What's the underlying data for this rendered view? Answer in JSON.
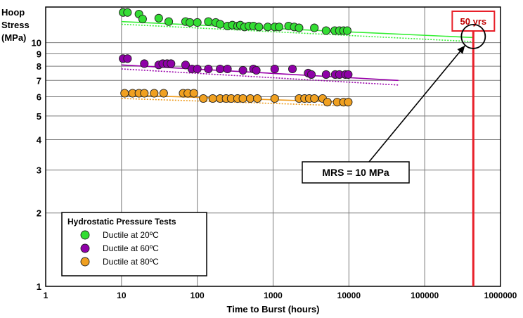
{
  "chart_data": {
    "type": "scatter",
    "title": "",
    "ylabel_lines": [
      "Hoop",
      "Stress",
      "(MPa)"
    ],
    "xlabel": "Time to Burst (hours)",
    "x_scale": "log",
    "y_scale": "log",
    "xlim": [
      1,
      1000000
    ],
    "ylim": [
      1,
      14
    ],
    "x_ticks": [
      {
        "value": 1,
        "label": "1"
      },
      {
        "value": 10,
        "label": "10"
      },
      {
        "value": 100,
        "label": "100"
      },
      {
        "value": 1000,
        "label": "1000"
      },
      {
        "value": 10000,
        "label": "10000"
      },
      {
        "value": 100000,
        "label": "100000"
      },
      {
        "value": 1000000,
        "label": "1000000"
      }
    ],
    "y_ticks": [
      {
        "value": 1,
        "label": "1"
      },
      {
        "value": 2,
        "label": "2"
      },
      {
        "value": 3,
        "label": "3"
      },
      {
        "value": 4,
        "label": "4"
      },
      {
        "value": 5,
        "label": "5"
      },
      {
        "value": 6,
        "label": "6"
      },
      {
        "value": 7,
        "label": "7"
      },
      {
        "value": 8,
        "label": "8"
      },
      {
        "value": 9,
        "label": "9"
      },
      {
        "value": 10,
        "label": "10"
      }
    ],
    "grid": true,
    "legend": {
      "title": "Hydrostatic Pressure Tests",
      "placement": "bottom-left"
    },
    "series": [
      {
        "name": "Ductile at 20ºC",
        "color": "#33dd33",
        "line_color": "#33ee33",
        "points": [
          [
            10.5,
            13.3
          ],
          [
            12,
            13.3
          ],
          [
            17,
            13.1
          ],
          [
            19,
            12.5
          ],
          [
            31,
            12.6
          ],
          [
            42,
            12.2
          ],
          [
            70,
            12.2
          ],
          [
            80,
            12.1
          ],
          [
            100,
            12.1
          ],
          [
            140,
            12.2
          ],
          [
            175,
            12.1
          ],
          [
            200,
            11.9
          ],
          [
            250,
            11.7
          ],
          [
            290,
            11.8
          ],
          [
            340,
            11.7
          ],
          [
            370,
            11.8
          ],
          [
            420,
            11.6
          ],
          [
            480,
            11.7
          ],
          [
            550,
            11.7
          ],
          [
            650,
            11.6
          ],
          [
            850,
            11.6
          ],
          [
            1050,
            11.6
          ],
          [
            1200,
            11.6
          ],
          [
            1600,
            11.7
          ],
          [
            1900,
            11.6
          ],
          [
            2200,
            11.5
          ],
          [
            3500,
            11.5
          ],
          [
            5000,
            11.2
          ],
          [
            6500,
            11.2
          ],
          [
            7500,
            11.2
          ],
          [
            8500,
            11.2
          ],
          [
            9500,
            11.2
          ]
        ],
        "trend": {
          "x": [
            10,
            430000
          ],
          "y": [
            12.2,
            10.5
          ]
        },
        "lower_bound": {
          "x": [
            10,
            430000
          ],
          "y": [
            11.9,
            10.1
          ]
        }
      },
      {
        "name": "Ductile at 60ºC",
        "color": "#8f00a8",
        "line_color": "#9900aa",
        "points": [
          [
            10.5,
            8.6
          ],
          [
            12,
            8.6
          ],
          [
            20,
            8.2
          ],
          [
            31,
            8.1
          ],
          [
            35,
            8.2
          ],
          [
            40,
            8.2
          ],
          [
            45,
            8.2
          ],
          [
            70,
            8.1
          ],
          [
            85,
            7.8
          ],
          [
            100,
            7.8
          ],
          [
            140,
            7.8
          ],
          [
            200,
            7.8
          ],
          [
            250,
            7.8
          ],
          [
            400,
            7.7
          ],
          [
            550,
            7.8
          ],
          [
            600,
            7.7
          ],
          [
            1050,
            7.8
          ],
          [
            1800,
            7.8
          ],
          [
            2900,
            7.5
          ],
          [
            3200,
            7.4
          ],
          [
            5000,
            7.4
          ],
          [
            6600,
            7.4
          ],
          [
            7500,
            7.4
          ],
          [
            9000,
            7.4
          ],
          [
            9800,
            7.4
          ]
        ],
        "trend": {
          "x": [
            10,
            45000
          ],
          "y": [
            8.1,
            7.0
          ]
        },
        "lower_bound": {
          "x": [
            10,
            45000
          ],
          "y": [
            7.8,
            6.7
          ]
        }
      },
      {
        "name": "Ductile at 80ºC",
        "color": "#f0a020",
        "line_color": "#ee9a1a",
        "points": [
          [
            11,
            6.2
          ],
          [
            14,
            6.2
          ],
          [
            17,
            6.2
          ],
          [
            20,
            6.2
          ],
          [
            27,
            6.2
          ],
          [
            36,
            6.2
          ],
          [
            65,
            6.2
          ],
          [
            75,
            6.2
          ],
          [
            90,
            6.2
          ],
          [
            120,
            5.9
          ],
          [
            160,
            5.9
          ],
          [
            200,
            5.9
          ],
          [
            240,
            5.9
          ],
          [
            280,
            5.9
          ],
          [
            340,
            5.9
          ],
          [
            400,
            5.9
          ],
          [
            500,
            5.9
          ],
          [
            620,
            5.9
          ],
          [
            1050,
            5.9
          ],
          [
            2200,
            5.9
          ],
          [
            2600,
            5.9
          ],
          [
            3000,
            5.9
          ],
          [
            3500,
            5.9
          ],
          [
            4500,
            5.9
          ],
          [
            5200,
            5.7
          ],
          [
            7000,
            5.7
          ],
          [
            8500,
            5.7
          ],
          [
            9800,
            5.7
          ]
        ],
        "trend": {
          "x": [
            10,
            10000
          ],
          "y": [
            6.1,
            5.7
          ]
        },
        "lower_bound": {
          "x": [
            10,
            10000
          ],
          "y": [
            5.9,
            5.5
          ]
        }
      }
    ],
    "annotations": {
      "vline": {
        "x": 438000,
        "color": "#e8202a",
        "label": "50 yrs"
      },
      "circle": {
        "x": 438000,
        "y": 10.6
      },
      "arrow_text": "MRS = 10 MPa"
    }
  }
}
